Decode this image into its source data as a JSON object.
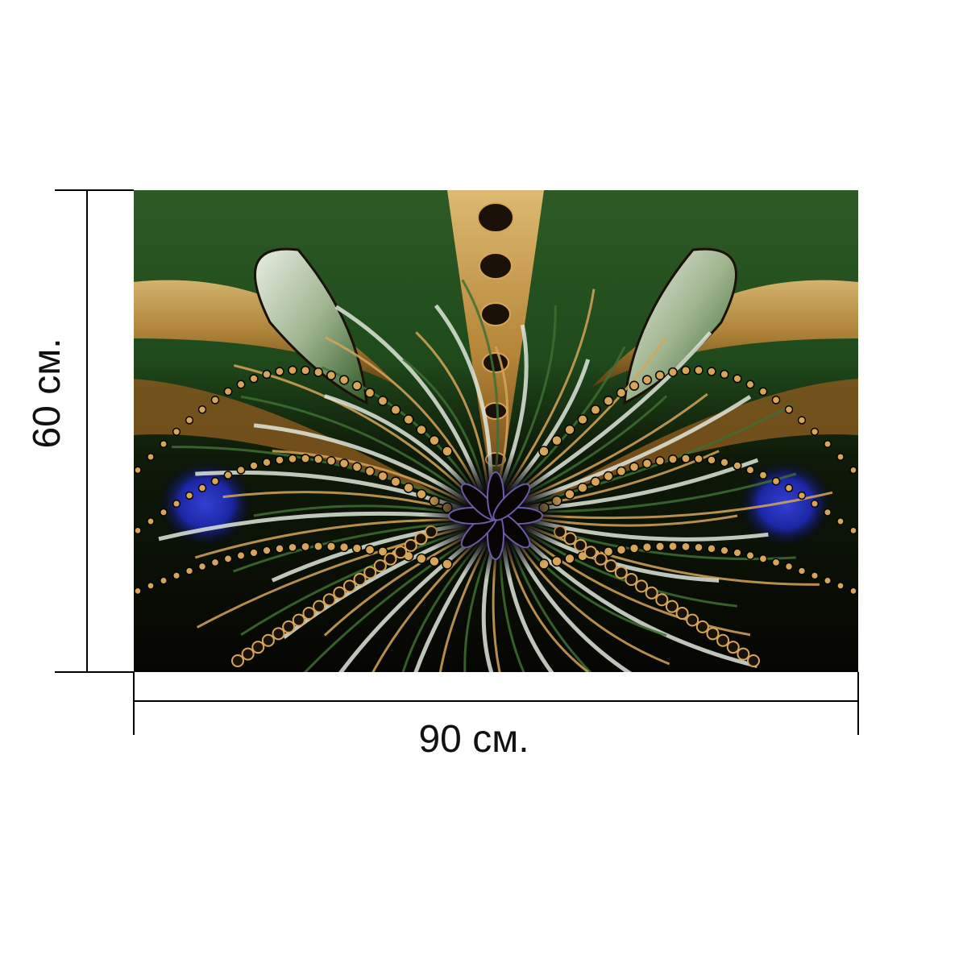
{
  "product": {
    "dimensions": {
      "height_label": "60 см.",
      "width_label": "90 см."
    },
    "artwork": {
      "subject": "symmetric-fractal-butterfly",
      "palette": {
        "deep_green": "#1f4a1c",
        "mid_green": "#3e6e32",
        "gold": "#d6a55a",
        "dark_brown": "#1a1208",
        "black": "#060503",
        "cobalt_blue": "#1c27a6",
        "pale_silver": "#dfe6da",
        "bronze": "#8a5a1e"
      }
    },
    "line_color": "#000000"
  }
}
